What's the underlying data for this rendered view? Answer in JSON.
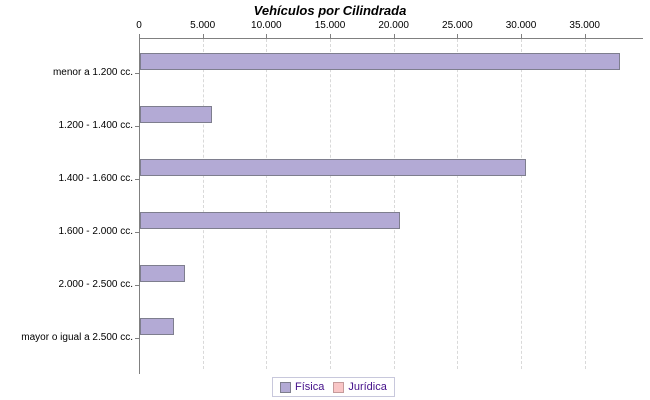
{
  "chart_data": {
    "type": "bar",
    "orientation": "horizontal",
    "title": "Vehículos por Cilindrada",
    "categories": [
      "menor a 1.200 cc.",
      "1.200 - 1.400 cc.",
      "1.400 - 1.600 cc.",
      "1.600 - 2.000 cc.",
      "2.000 - 2.500 cc.",
      "mayor o igual a 2.500 cc."
    ],
    "series": [
      {
        "name": "Física",
        "color": "#b3aad5",
        "border": "#7e7e8e",
        "values": [
          37700,
          5650,
          30300,
          20450,
          3550,
          2650
        ]
      },
      {
        "name": "Jurídica",
        "color": "#f9c6c6",
        "border": "#c59b9b",
        "values": []
      }
    ],
    "x_ticks": [
      0,
      5000,
      10000,
      15000,
      20000,
      25000,
      30000,
      35000
    ],
    "x_tick_labels": [
      "0",
      "5.000",
      "10.000",
      "15.000",
      "20.000",
      "25.000",
      "30.000",
      "35.000"
    ],
    "xlim": [
      0,
      39500
    ],
    "grid": "vertical-dashed",
    "legend_position": "bottom",
    "legend_text_color": "#44108a",
    "axis_color": "#808080",
    "grid_color": "#d9d9d9",
    "background": "#ffffff"
  }
}
